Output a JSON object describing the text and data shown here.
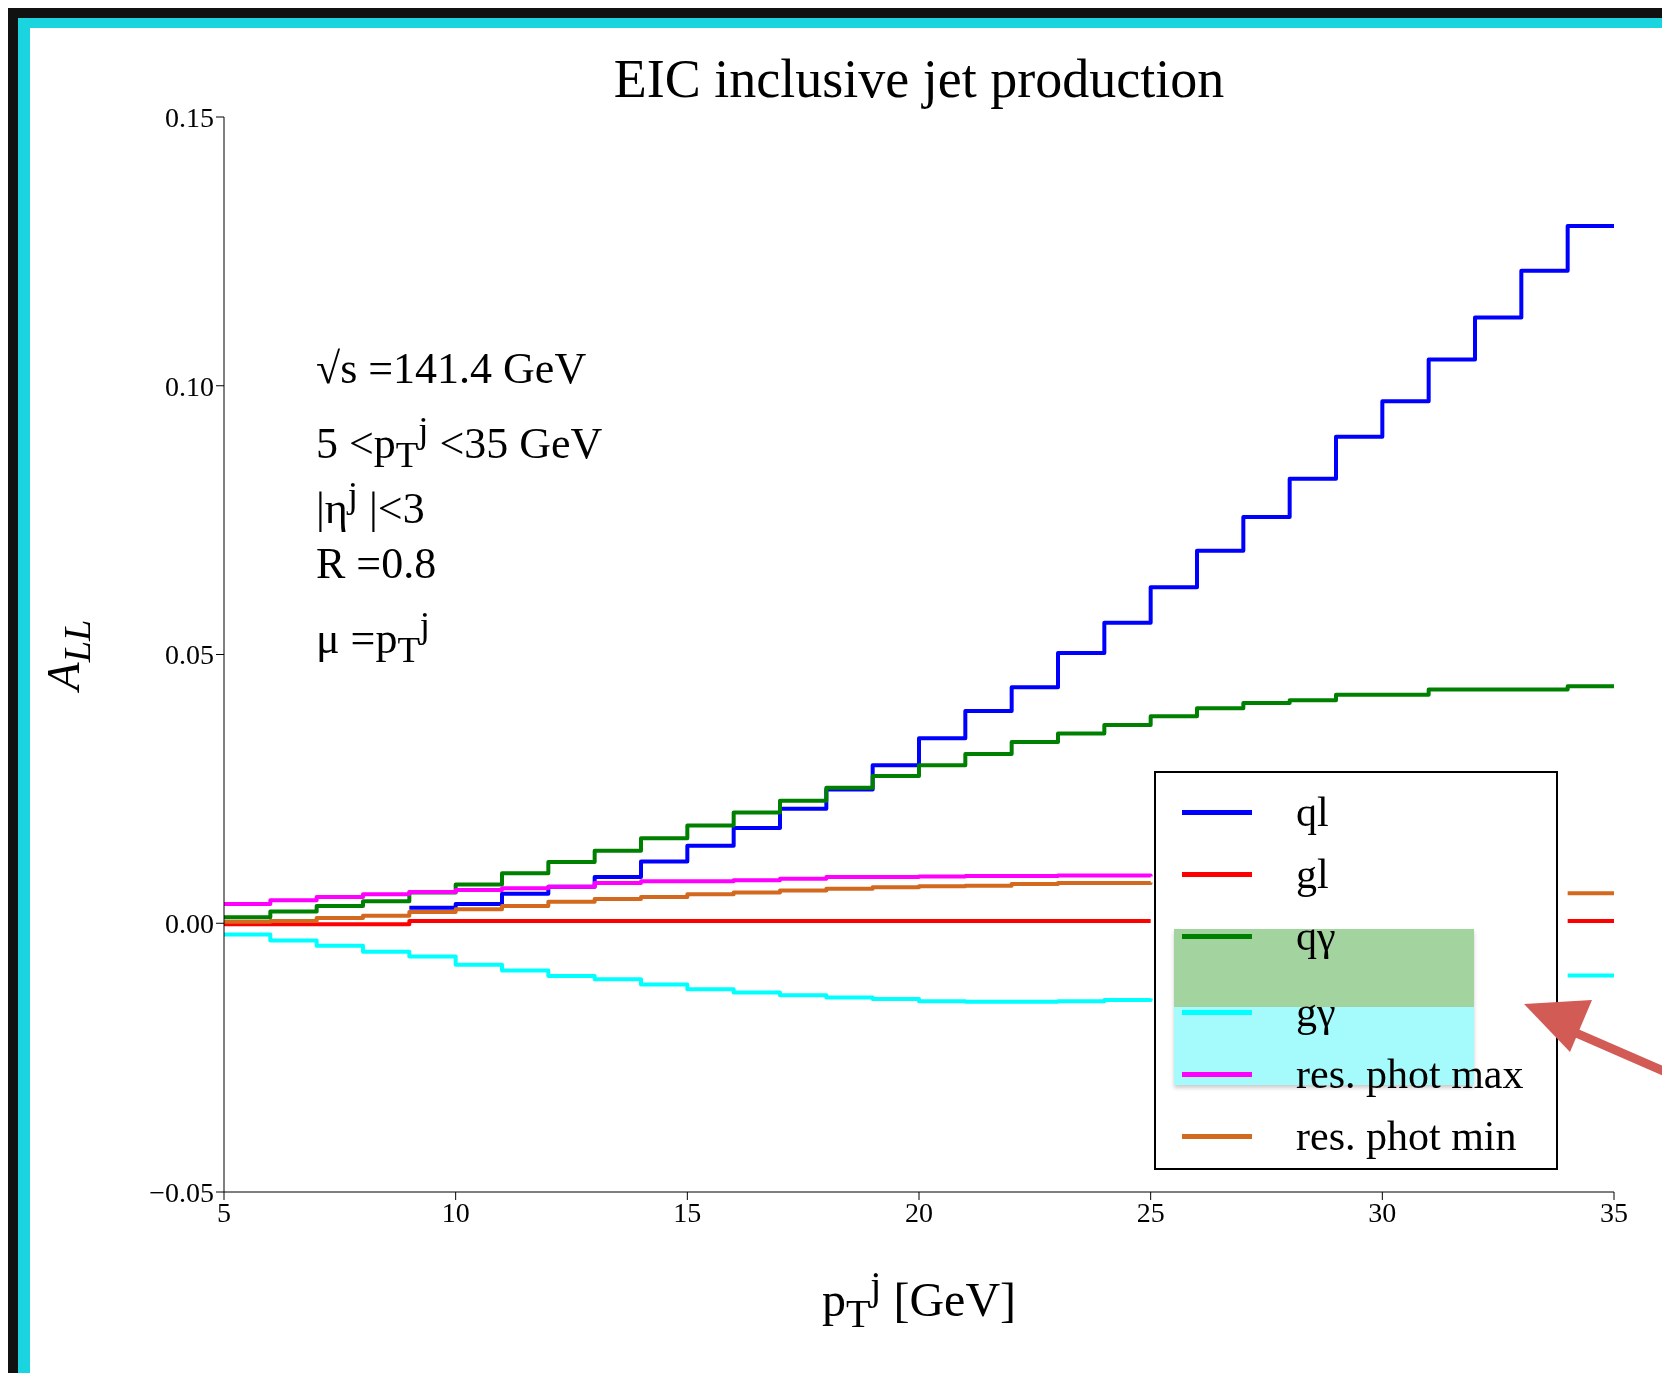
{
  "chart_data": {
    "type": "step",
    "title": "EIC inclusive jet production",
    "xlabel": "p$_{T}$$^{j}$ [GeV]",
    "ylabel": "A$_{LL}$",
    "annotations": [
      "√s =141.4 GeV",
      "5 <p$_{T}$$^{j}$ <35 GeV",
      "|η$^{j}$ |<3",
      "R =0.8",
      "μ =p$_{T}$$^{j}$"
    ],
    "x": [
      5,
      6,
      7,
      8,
      9,
      10,
      11,
      12,
      13,
      14,
      15,
      16,
      17,
      18,
      19,
      20,
      21,
      22,
      23,
      24,
      25,
      26,
      27,
      28,
      29,
      30,
      31,
      32,
      33,
      34,
      35
    ],
    "series": [
      {
        "name": "ql",
        "color": "#0000ff",
        "values": [
          null,
          null,
          null,
          null,
          0.0029,
          0.0036,
          0.0055,
          0.0068,
          0.0086,
          0.0115,
          0.0144,
          0.0177,
          0.0213,
          0.0249,
          0.0294,
          0.0344,
          0.0395,
          0.0439,
          0.0503,
          0.0559,
          0.0625,
          0.0693,
          0.0756,
          0.0827,
          0.0905,
          0.0971,
          0.1049,
          0.1127,
          0.1214,
          0.1297,
          0.1297
        ]
      },
      {
        "name": "gl",
        "color": "#ff0000",
        "values": [
          -0.0002,
          -0.0002,
          -0.0002,
          -0.0002,
          0.0004,
          0.0004,
          0.0004,
          0.0004,
          0.0004,
          0.0004,
          0.0004,
          0.0004,
          0.0004,
          0.0004,
          0.0004,
          0.0004,
          0.0004,
          0.0004,
          0.0004,
          0.0004,
          0.0004,
          null,
          null,
          null,
          null,
          null,
          null,
          null,
          null,
          0.0004,
          0.0004
        ]
      },
      {
        "name": "qγ",
        "color": "#008000",
        "values": [
          0.0011,
          0.0022,
          0.0032,
          0.0041,
          0.0057,
          0.0072,
          0.0093,
          0.0114,
          0.0135,
          0.0158,
          0.0182,
          0.0206,
          0.0228,
          0.0252,
          0.0274,
          0.0294,
          0.0315,
          0.0337,
          0.0353,
          0.0369,
          0.0385,
          0.04,
          0.041,
          0.0415,
          0.0425,
          0.0425,
          0.0435,
          0.0435,
          0.0435,
          0.0441,
          0.0441
        ]
      },
      {
        "name": "gγ",
        "color": "#00ffff",
        "values": [
          -0.0021,
          -0.0032,
          -0.0042,
          -0.0053,
          -0.0062,
          -0.0077,
          -0.0088,
          -0.0098,
          -0.0104,
          -0.0114,
          -0.0123,
          -0.0129,
          -0.0134,
          -0.0138,
          -0.0141,
          -0.0145,
          -0.0146,
          -0.0146,
          -0.0145,
          -0.0143,
          -0.014,
          null,
          null,
          null,
          null,
          null,
          null,
          null,
          null,
          -0.0097,
          -0.0097
        ]
      },
      {
        "name": "res. phot max",
        "color": "#ff00ff",
        "values": [
          0.0036,
          0.0043,
          0.0049,
          0.0054,
          0.0058,
          0.0062,
          0.0065,
          0.0068,
          0.0075,
          0.0078,
          0.0078,
          0.008,
          0.0083,
          0.0086,
          0.0086,
          0.0087,
          0.0088,
          0.0088,
          0.0089,
          0.0089,
          0.0087,
          null,
          null,
          null,
          null,
          null,
          null,
          null,
          null,
          null,
          null
        ]
      },
      {
        "name": "res. phot min",
        "color": "#d2691e",
        "values": [
          0.0003,
          0.0004,
          0.001,
          0.0014,
          0.0021,
          0.0026,
          0.0032,
          0.004,
          0.0045,
          0.0049,
          0.0054,
          0.0057,
          0.0061,
          0.0064,
          0.0067,
          0.0069,
          0.007,
          0.0073,
          0.0075,
          0.0075,
          0.0076,
          null,
          null,
          null,
          null,
          null,
          null,
          null,
          null,
          0.0056,
          0.0056
        ]
      }
    ],
    "xlim": [
      5,
      35
    ],
    "xticks": [
      5,
      10,
      15,
      20,
      25,
      30,
      35
    ],
    "ylim": [
      -0.05,
      0.15
    ],
    "yticks": [
      {
        "value": -0.05,
        "label": "−0.05"
      },
      {
        "value": 0,
        "label": "0.00"
      },
      {
        "value": 0.05,
        "label": "0.05"
      },
      {
        "value": 0.1,
        "label": "0.10"
      },
      {
        "value": 0.15,
        "label": "0.15"
      }
    ],
    "legend": "bottom right",
    "grid": false
  }
}
